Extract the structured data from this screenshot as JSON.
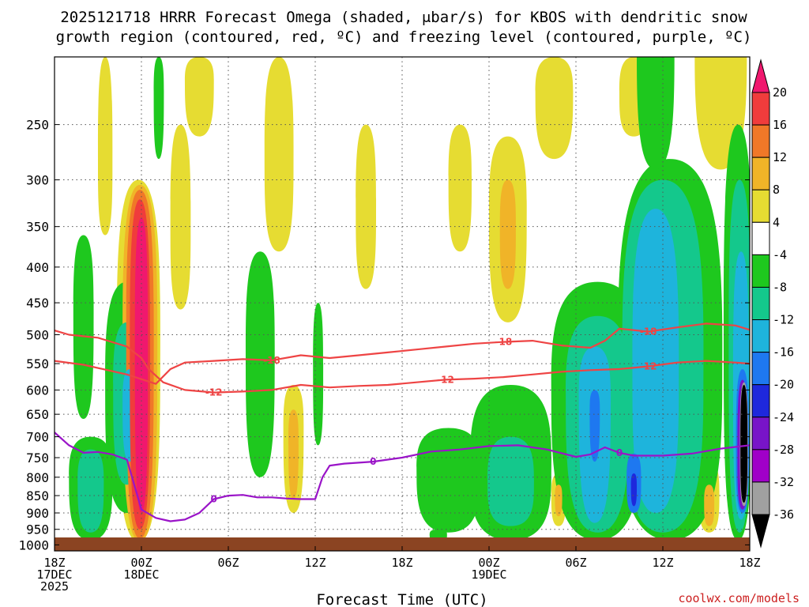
{
  "chart_data": {
    "type": "contour-timeheight",
    "title_line1": "2025121718 HRRR Forecast Omega (shaded, μbar/s) for KBOS with dendritic snow",
    "title_line2": "growth region (contoured, red, ºC) and freezing level (contoured, purple, ºC)",
    "xlabel": "Forecast Time (UTC)",
    "credit": "coolwx.com/models",
    "y_axis": {
      "variable": "pressure (hPa)",
      "range": [
        1020,
        200
      ],
      "ticks": [
        250,
        300,
        350,
        400,
        450,
        500,
        550,
        600,
        650,
        700,
        750,
        800,
        850,
        900,
        950,
        1000
      ]
    },
    "x_axis": {
      "range_hours": [
        0,
        48
      ],
      "ticks": [
        {
          "h": 0,
          "lines": [
            "18Z",
            "17DEC",
            "2025"
          ]
        },
        {
          "h": 6,
          "lines": [
            "00Z",
            "18DEC"
          ]
        },
        {
          "h": 12,
          "lines": [
            "06Z"
          ]
        },
        {
          "h": 18,
          "lines": [
            "12Z"
          ]
        },
        {
          "h": 24,
          "lines": [
            "18Z"
          ]
        },
        {
          "h": 30,
          "lines": [
            "00Z",
            "19DEC"
          ]
        },
        {
          "h": 36,
          "lines": [
            "06Z"
          ]
        },
        {
          "h": 42,
          "lines": [
            "12Z"
          ]
        },
        {
          "h": 48,
          "lines": [
            "18Z"
          ]
        }
      ]
    },
    "colorbar": {
      "levels": [
        20,
        16,
        12,
        8,
        4,
        -4,
        -8,
        -12,
        -16,
        -20,
        -24,
        -28,
        -32,
        -36
      ],
      "colors": [
        "#f0186e",
        "#f03c3c",
        "#f07828",
        "#f0b428",
        "#e6dc32",
        "#ffffff",
        "#1ec81e",
        "#14c88c",
        "#1eb4dc",
        "#1e78f0",
        "#1e28dc",
        "#7814c8",
        "#a000c8",
        "#a0a0a0",
        "#000000"
      ]
    },
    "series": [
      {
        "name": "-18 ºC isotherm",
        "color": "#ee4444",
        "label": "-18",
        "x": [
          0,
          2,
          5,
          7,
          8,
          9,
          11,
          13,
          15,
          17,
          19,
          21,
          23,
          25,
          27,
          29,
          31,
          33,
          35,
          37,
          38,
          39,
          41,
          43,
          45,
          47,
          48
        ],
        "p": [
          545,
          552,
          570,
          588,
          560,
          548,
          545,
          542,
          544,
          535,
          540,
          535,
          530,
          525,
          520,
          515,
          512,
          510,
          518,
          522,
          510,
          490,
          495,
          488,
          482,
          485,
          492
        ]
      },
      {
        "name": "-12 ºC isotherm",
        "color": "#ee4444",
        "label": "-12",
        "x": [
          0,
          1,
          3,
          5,
          6,
          6.5,
          7.5,
          9,
          11,
          13,
          15,
          17,
          19,
          21,
          23,
          25,
          27,
          29,
          31,
          33,
          35,
          37,
          39,
          41,
          43,
          45,
          47,
          48
        ],
        "p": [
          493,
          500,
          505,
          520,
          540,
          560,
          585,
          600,
          605,
          603,
          600,
          590,
          595,
          592,
          590,
          585,
          580,
          578,
          575,
          570,
          565,
          562,
          560,
          555,
          548,
          545,
          548,
          550
        ]
      },
      {
        "name": "0 ºC isotherm (freezing level)",
        "color": "#9a14c8",
        "label": "0",
        "x": [
          0,
          1,
          2,
          3,
          4,
          5,
          6,
          7,
          8,
          9,
          10,
          11,
          12,
          13,
          14,
          15,
          16,
          17,
          18,
          18.5,
          19,
          20,
          22,
          24,
          26,
          28,
          30,
          32,
          34,
          36,
          37,
          38,
          39,
          40,
          42,
          44,
          46,
          48
        ],
        "p": [
          690,
          720,
          738,
          736,
          742,
          755,
          890,
          915,
          925,
          920,
          900,
          860,
          850,
          848,
          855,
          855,
          858,
          860,
          860,
          800,
          770,
          765,
          760,
          750,
          735,
          730,
          722,
          720,
          730,
          748,
          742,
          725,
          738,
          745,
          745,
          740,
          728,
          720
        ]
      }
    ],
    "omega_regions": [
      {
        "level": 4,
        "cx": 5.8,
        "pc": 560,
        "rx": 1.5,
        "pt": 300,
        "pb": 990
      },
      {
        "level": 8,
        "cx": 5.9,
        "pc": 560,
        "rx": 1.2,
        "pt": 305,
        "pb": 990
      },
      {
        "level": 12,
        "cx": 5.9,
        "pc": 560,
        "rx": 0.95,
        "pt": 310,
        "pb": 980
      },
      {
        "level": 16,
        "cx": 5.9,
        "pc": 580,
        "rx": 0.7,
        "pt": 320,
        "pb": 950
      },
      {
        "level": 20,
        "cx": 6.0,
        "pc": 560,
        "rx": 0.45,
        "pt": 340,
        "pb": 900
      },
      {
        "level": 4,
        "cx": 3.5,
        "pc": 290,
        "rx": 0.5,
        "pt": 200,
        "pb": 360
      },
      {
        "level": 4,
        "cx": 8.7,
        "pc": 360,
        "rx": 0.7,
        "pt": 250,
        "pb": 460
      },
      {
        "level": 4,
        "cx": 10.0,
        "pc": 220,
        "rx": 1.0,
        "pt": 200,
        "pb": 260
      },
      {
        "level": 4,
        "cx": 15.5,
        "pc": 290,
        "rx": 1.0,
        "pt": 200,
        "pb": 380
      },
      {
        "level": 4,
        "cx": 16.5,
        "pc": 700,
        "rx": 0.7,
        "pt": 590,
        "pb": 900
      },
      {
        "level": 8,
        "cx": 16.5,
        "pc": 720,
        "rx": 0.35,
        "pt": 640,
        "pb": 860
      },
      {
        "level": 4,
        "cx": 21.5,
        "pc": 340,
        "rx": 0.7,
        "pt": 250,
        "pb": 430
      },
      {
        "level": 4,
        "cx": 28.0,
        "pc": 310,
        "rx": 0.8,
        "pt": 250,
        "pb": 380
      },
      {
        "level": 4,
        "cx": 31.3,
        "pc": 350,
        "rx": 1.3,
        "pt": 260,
        "pb": 480
      },
      {
        "level": 8,
        "cx": 31.3,
        "pc": 360,
        "rx": 0.55,
        "pt": 300,
        "pb": 430
      },
      {
        "level": 4,
        "cx": 34.5,
        "pc": 230,
        "rx": 1.3,
        "pt": 200,
        "pb": 280
      },
      {
        "level": 4,
        "cx": 40.0,
        "pc": 230,
        "rx": 1.0,
        "pt": 200,
        "pb": 260
      },
      {
        "level": 4,
        "cx": 46.0,
        "pc": 200,
        "rx": 1.8,
        "pt": 200,
        "pb": 290
      },
      {
        "level": 4,
        "cx": 34.8,
        "pc": 860,
        "rx": 0.5,
        "pt": 790,
        "pb": 940
      },
      {
        "level": 8,
        "cx": 34.8,
        "pc": 860,
        "rx": 0.25,
        "pt": 820,
        "pb": 910
      },
      {
        "level": 4,
        "cx": 45.2,
        "pc": 860,
        "rx": 0.7,
        "pt": 760,
        "pb": 960
      },
      {
        "level": 8,
        "cx": 45.2,
        "pc": 880,
        "rx": 0.35,
        "pt": 820,
        "pb": 940
      },
      {
        "level": -4,
        "cx": 2.0,
        "pc": 490,
        "rx": 0.7,
        "pt": 360,
        "pb": 660
      },
      {
        "level": -4,
        "cx": 2.5,
        "pc": 820,
        "rx": 1.5,
        "pt": 700,
        "pb": 985
      },
      {
        "level": -8,
        "cx": 2.5,
        "pc": 830,
        "rx": 0.9,
        "pt": 730,
        "pb": 960
      },
      {
        "level": -4,
        "cx": 5.0,
        "pc": 620,
        "rx": 1.5,
        "pt": 420,
        "pb": 900
      },
      {
        "level": -8,
        "cx": 5.0,
        "pc": 620,
        "rx": 0.95,
        "pt": 480,
        "pb": 820
      },
      {
        "level": -12,
        "cx": 5.2,
        "pc": 640,
        "rx": 0.5,
        "pt": 560,
        "pb": 760
      },
      {
        "level": -4,
        "cx": 7.2,
        "pc": 230,
        "rx": 0.35,
        "pt": 200,
        "pb": 280
      },
      {
        "level": -4,
        "cx": 14.2,
        "pc": 560,
        "rx": 1.0,
        "pt": 380,
        "pb": 800
      },
      {
        "level": -4,
        "cx": 18.2,
        "pc": 580,
        "rx": 0.35,
        "pt": 450,
        "pb": 720
      },
      {
        "level": -4,
        "cx": 27.2,
        "pc": 800,
        "rx": 2.2,
        "pt": 680,
        "pb": 960
      },
      {
        "level": -4,
        "cx": 31.5,
        "pc": 800,
        "rx": 2.8,
        "pt": 590,
        "pb": 985
      },
      {
        "level": -8,
        "cx": 31.5,
        "pc": 830,
        "rx": 1.6,
        "pt": 700,
        "pb": 940
      },
      {
        "level": -4,
        "cx": 26.5,
        "pc": 970,
        "rx": 0.6,
        "pt": 950,
        "pb": 990
      },
      {
        "level": -4,
        "cx": 37.5,
        "pc": 630,
        "rx": 3.2,
        "pt": 420,
        "pb": 985
      },
      {
        "level": -8,
        "cx": 37.5,
        "pc": 640,
        "rx": 2.2,
        "pt": 470,
        "pb": 960
      },
      {
        "level": -12,
        "cx": 37.3,
        "pc": 640,
        "rx": 1.1,
        "pt": 520,
        "pb": 930
      },
      {
        "level": -16,
        "cx": 37.3,
        "pc": 650,
        "rx": 0.35,
        "pt": 600,
        "pb": 760
      },
      {
        "level": -4,
        "cx": 42.5,
        "pc": 600,
        "rx": 3.6,
        "pt": 280,
        "pb": 985
      },
      {
        "level": -8,
        "cx": 42.0,
        "pc": 600,
        "rx": 2.8,
        "pt": 300,
        "pb": 960
      },
      {
        "level": -12,
        "cx": 41.5,
        "pc": 600,
        "rx": 1.6,
        "pt": 330,
        "pb": 900
      },
      {
        "level": -16,
        "cx": 40.0,
        "pc": 820,
        "rx": 0.5,
        "pt": 740,
        "pb": 900
      },
      {
        "level": -20,
        "cx": 40.0,
        "pc": 830,
        "rx": 0.2,
        "pt": 790,
        "pb": 880
      },
      {
        "level": -4,
        "cx": 41.5,
        "pc": 200,
        "rx": 1.3,
        "pt": 200,
        "pb": 290
      },
      {
        "level": -4,
        "cx": 47.2,
        "pc": 550,
        "rx": 1.0,
        "pt": 250,
        "pb": 985
      },
      {
        "level": -8,
        "cx": 47.3,
        "pc": 560,
        "rx": 0.75,
        "pt": 300,
        "pb": 960
      },
      {
        "level": -12,
        "cx": 47.4,
        "pc": 620,
        "rx": 0.55,
        "pt": 380,
        "pb": 920
      },
      {
        "level": -16,
        "cx": 47.5,
        "pc": 750,
        "rx": 0.45,
        "pt": 560,
        "pb": 900
      },
      {
        "level": -24,
        "cx": 47.5,
        "pc": 760,
        "rx": 0.35,
        "pt": 580,
        "pb": 890
      },
      {
        "level": -32,
        "cx": 47.6,
        "pc": 745,
        "rx": 0.28,
        "pt": 585,
        "pb": 880
      },
      {
        "level": -36,
        "cx": 47.6,
        "pc": 740,
        "rx": 0.24,
        "pt": 590,
        "pb": 870
      }
    ]
  }
}
